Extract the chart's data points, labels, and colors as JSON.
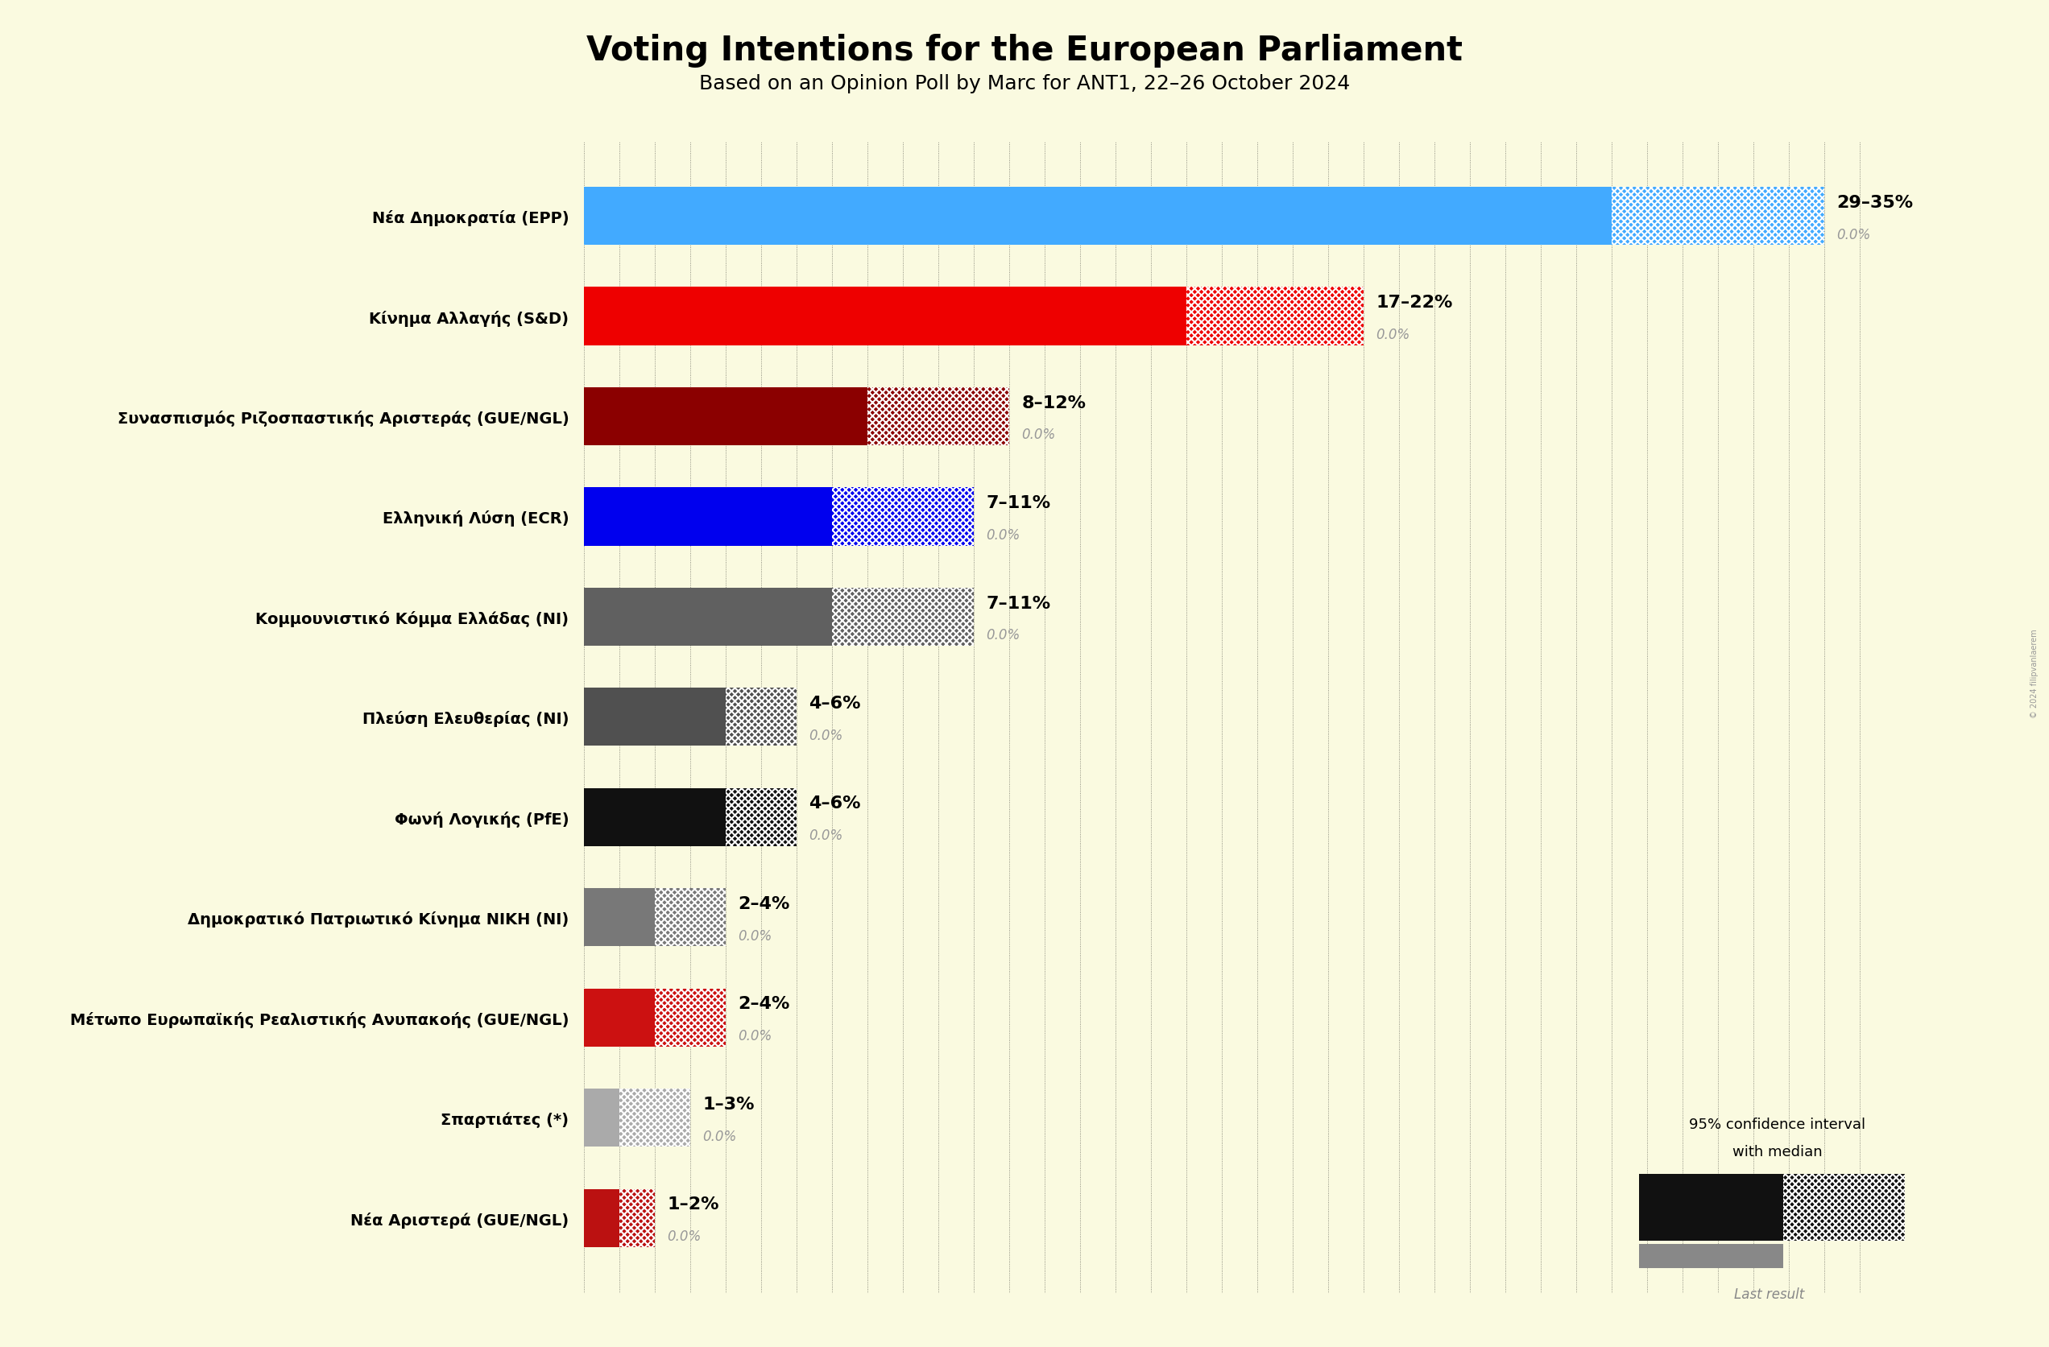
{
  "title": "Voting Intentions for the European Parliament",
  "subtitle": "Based on an Opinion Poll by Marc for ANT1, 22–26 October 2024",
  "background_color": "#FAFAE0",
  "parties": [
    {
      "name": "Νέα Δημοκρατία (EPP)",
      "low": 29,
      "high": 35,
      "color": "#42AAFF",
      "label": "29–35%",
      "last": "0.0%"
    },
    {
      "name": "Κίνημα Αλλαγής (S&D)",
      "low": 17,
      "high": 22,
      "color": "#EE0000",
      "label": "17–22%",
      "last": "0.0%"
    },
    {
      "name": "Συνασπισμός Ριζοσπαστικής Αριστεράς (GUE/NGL)",
      "low": 8,
      "high": 12,
      "color": "#8B0000",
      "label": "8–12%",
      "last": "0.0%"
    },
    {
      "name": "Ελληνική Λύση (ECR)",
      "low": 7,
      "high": 11,
      "color": "#0000EE",
      "label": "7–11%",
      "last": "0.0%"
    },
    {
      "name": "Κομμουνιστικό Κόμμα Ελλάδας (NI)",
      "low": 7,
      "high": 11,
      "color": "#606060",
      "label": "7–11%",
      "last": "0.0%"
    },
    {
      "name": "Πλεύση Ελευθερίας (NI)",
      "low": 4,
      "high": 6,
      "color": "#505050",
      "label": "4–6%",
      "last": "0.0%"
    },
    {
      "name": "Φωνή Λογικής (PfE)",
      "low": 4,
      "high": 6,
      "color": "#111111",
      "label": "4–6%",
      "last": "0.0%"
    },
    {
      "name": "Δημοκρατικό Πατριωτικό Κίνημα ΝΙΚΗ (NI)",
      "low": 2,
      "high": 4,
      "color": "#787878",
      "label": "2–4%",
      "last": "0.0%"
    },
    {
      "name": "Μέτωπο Ευρωπαϊκής Ρεαλιστικής Ανυπακοής (GUE/NGL)",
      "low": 2,
      "high": 4,
      "color": "#CC1111",
      "label": "2–4%",
      "last": "0.0%"
    },
    {
      "name": "Σπαρτιάτες (*)",
      "low": 1,
      "high": 3,
      "color": "#AAAAAA",
      "label": "1–3%",
      "last": "0.0%"
    },
    {
      "name": "Νέα Αριστερά (GUE/NGL)",
      "low": 1,
      "high": 2,
      "color": "#BB1111",
      "label": "1–2%",
      "last": "0.0%"
    }
  ],
  "xlim_max": 37,
  "legend_text1": "95% confidence interval",
  "legend_text2": "with median",
  "legend_text3": "Last result"
}
